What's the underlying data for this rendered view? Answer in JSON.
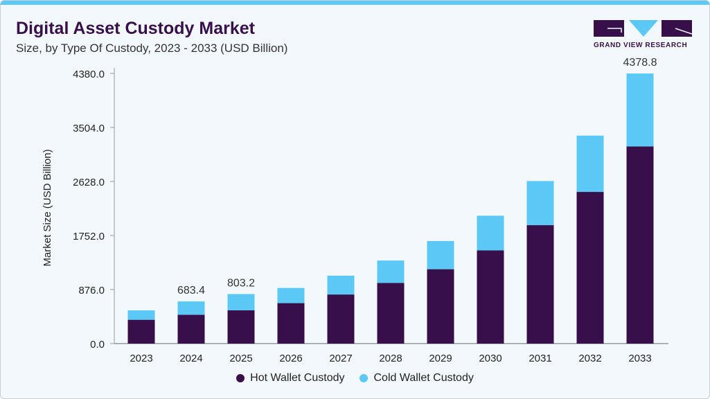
{
  "header": {
    "title": "Digital Asset Custody Market",
    "subtitle": "Size, by Type Of Custody, 2023 - 2033 (USD Billion)"
  },
  "logo": {
    "text": "GRAND VIEW RESEARCH"
  },
  "colors": {
    "hot": "#37104a",
    "cold": "#5bc8f5",
    "accent": "#5bc8f5"
  },
  "chart_data": {
    "type": "bar",
    "stacked": true,
    "title": "Digital Asset Custody Market",
    "ylabel": "Market Size (USD Billion)",
    "xlabel": "",
    "ylim": [
      0,
      4380
    ],
    "yticks": [
      "0.0",
      "876.0",
      "1752.0",
      "2628.0",
      "3504.0",
      "4380.0"
    ],
    "grid": false,
    "legend": "bottom",
    "categories": [
      "2023",
      "2024",
      "2025",
      "2026",
      "2027",
      "2028",
      "2029",
      "2030",
      "2031",
      "2032",
      "2033"
    ],
    "series": [
      {
        "name": "Hot Wallet Custody",
        "values": [
          386,
          468,
          539,
          656,
          796,
          984,
          1206,
          1511,
          1920,
          2459,
          3197
        ]
      },
      {
        "name": "Cold Wallet Custody",
        "values": [
          153,
          215.4,
          264.2,
          246,
          305,
          363,
          457,
          562,
          715,
          913,
          1181.8
        ]
      }
    ],
    "data_labels": [
      {
        "category": "2024",
        "text": "683.4"
      },
      {
        "category": "2025",
        "text": "803.2"
      },
      {
        "category": "2033",
        "text": "4378.8"
      }
    ]
  }
}
